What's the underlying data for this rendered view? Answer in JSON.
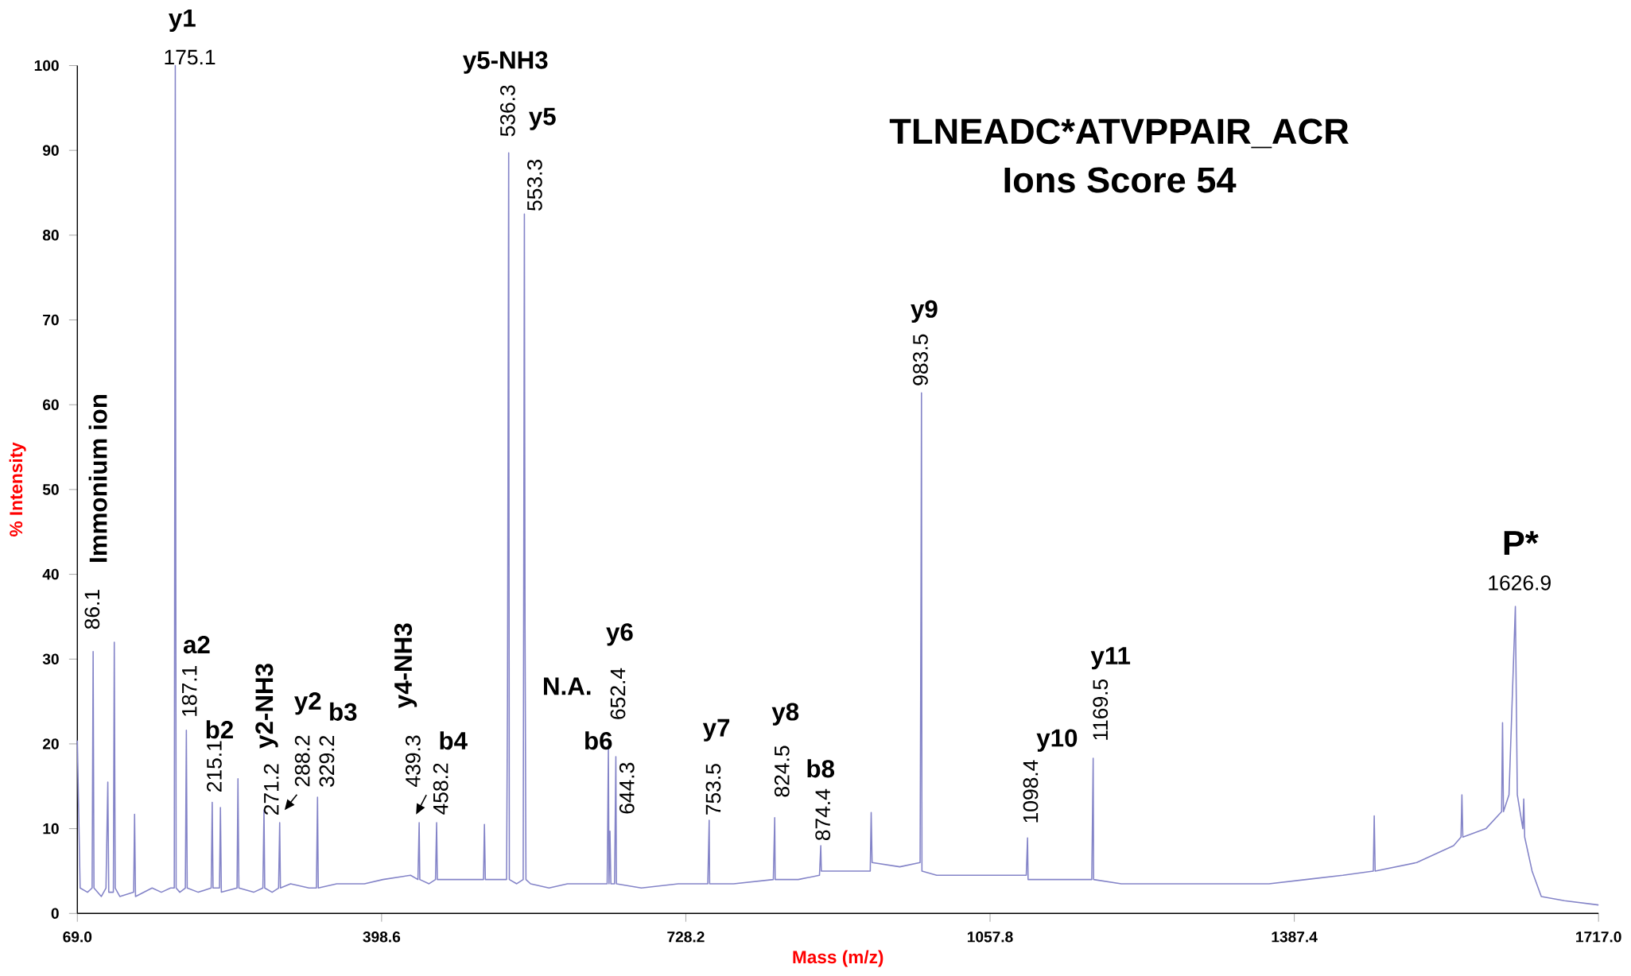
{
  "chart_data": {
    "type": "line",
    "title": "TLNEADC*ATVPPAIR_ACR",
    "subtitle": "Ions Score 54",
    "xlabel": "Mass (m/z)",
    "ylabel": "% Intensity",
    "color": "#8484c8",
    "x": [
      69,
      72,
      80,
      85,
      86.1,
      87,
      95,
      100,
      102,
      103,
      108,
      109,
      110,
      115,
      130,
      131,
      132,
      150,
      160,
      170,
      174,
      175.1,
      176,
      180,
      186,
      187.1,
      188,
      200,
      214,
      215.1,
      216,
      223,
      224,
      225,
      242,
      243,
      244,
      260,
      270,
      271.2,
      272,
      280,
      287,
      288.2,
      289,
      300,
      320,
      328,
      329.2,
      330,
      350,
      380,
      400,
      430,
      438,
      439.3,
      440,
      450,
      457,
      458.2,
      459,
      490,
      509,
      510,
      511,
      525,
      534,
      535,
      536.3,
      537,
      545,
      552,
      553.3,
      554,
      555,
      560,
      580,
      600,
      620,
      643,
      644.3,
      645,
      646,
      647,
      651,
      652.4,
      653,
      680,
      720,
      752,
      753.5,
      754,
      780,
      823,
      824.5,
      825,
      850,
      873,
      874.4,
      875,
      900,
      928,
      929,
      930,
      960,
      982,
      983,
      983.5,
      984,
      1000,
      1040,
      1080,
      1097,
      1098.4,
      1099,
      1130,
      1168,
      1169.5,
      1170,
      1200,
      1260,
      1300,
      1340,
      1360,
      1400,
      1440,
      1473,
      1474,
      1475,
      1520,
      1560,
      1568,
      1569,
      1570,
      1595,
      1612,
      1613,
      1614,
      1620,
      1626.9,
      1629,
      1635,
      1636,
      1637,
      1645,
      1655,
      1680,
      1717
    ],
    "values": [
      20.4,
      3,
      2.5,
      3,
      30.9,
      3,
      2,
      3,
      15.5,
      2.5,
      2.5,
      32,
      3,
      2,
      2.5,
      11.7,
      2,
      3,
      2.5,
      3,
      3,
      100,
      3,
      2.5,
      3,
      21.6,
      3,
      2.5,
      3,
      13.1,
      3,
      3,
      12.5,
      2.5,
      3,
      15.9,
      3,
      2.5,
      3,
      12.2,
      3,
      2.5,
      3,
      10.7,
      3,
      3.5,
      3,
      3,
      13.7,
      3,
      3.5,
      3.5,
      4,
      4.5,
      4,
      10.7,
      4,
      3.5,
      4,
      10.7,
      4,
      4,
      4,
      10.5,
      4,
      4,
      4,
      25,
      89.7,
      4,
      3.5,
      4,
      82.5,
      34,
      4,
      3.5,
      3,
      3.5,
      3.5,
      3.5,
      19.5,
      3.5,
      9.7,
      3.5,
      3.5,
      18.5,
      3.5,
      3,
      3.5,
      3.5,
      11,
      3.5,
      3.5,
      4,
      11.3,
      4,
      4,
      4.5,
      8,
      5,
      5,
      5,
      11.9,
      6,
      5.5,
      6,
      38,
      61.4,
      5,
      4.5,
      4.5,
      4.5,
      4.5,
      8.9,
      4,
      4,
      4,
      18.3,
      4,
      3.5,
      3.5,
      3.5,
      3.5,
      3.5,
      4,
      4.5,
      5,
      11.5,
      5,
      6,
      8,
      9,
      14,
      9,
      10,
      12,
      22.5,
      12,
      14,
      36.2,
      14,
      10,
      13.5,
      9,
      5,
      2,
      1.5,
      1
    ],
    "xlim": [
      69,
      1717
    ],
    "ylim": [
      0,
      100
    ],
    "xticks": [
      {
        "value": 69,
        "label": "69.0"
      },
      {
        "value": 398.6,
        "label": "398.6"
      },
      {
        "value": 728.2,
        "label": "728.2"
      },
      {
        "value": 1057.8,
        "label": "1057.8"
      },
      {
        "value": 1387.4,
        "label": "1387.4"
      },
      {
        "value": 1717,
        "label": "1717.0"
      }
    ],
    "yticks": [
      0,
      10,
      20,
      30,
      40,
      50,
      60,
      70,
      80,
      90,
      100
    ],
    "annotations": [
      "Immonium ion",
      {
        "text": "86.1",
        "x": 86.1,
        "y": 30.9
      },
      "y1",
      {
        "text": "175.1",
        "x": 175.1,
        "y": 100
      },
      "a2",
      {
        "text": "187.1",
        "x": 187.1,
        "y": 21.6
      },
      "b2",
      {
        "text": "215.1",
        "x": 215.1,
        "y": 13.1
      },
      "y2-NH3",
      {
        "text": "271.2",
        "x": 271.2,
        "y": 12.2
      },
      "y2",
      {
        "text": "288.2",
        "x": 288.2,
        "y": 10.7
      },
      "b3",
      {
        "text": "329.2",
        "x": 329.2,
        "y": 13.7
      },
      "y4-NH3",
      {
        "text": "439.3",
        "x": 439.3,
        "y": 10.7
      },
      "b4",
      {
        "text": "458.2",
        "x": 458.2,
        "y": 10.7
      },
      "y5-NH3",
      {
        "text": "536.3",
        "x": 536.3,
        "y": 89.7
      },
      "y5",
      {
        "text": "553.3",
        "x": 553.3,
        "y": 82.5
      },
      "N.A.",
      "b6",
      {
        "text": "644.3",
        "x": 644.3,
        "y": 19.5
      },
      "y6",
      {
        "text": "652.4",
        "x": 652.4,
        "y": 18.5
      },
      "y7",
      {
        "text": "753.5",
        "x": 753.5,
        "y": 11
      },
      "y8",
      {
        "text": "824.5",
        "x": 824.5,
        "y": 11.3
      },
      "b8",
      {
        "text": "874.4",
        "x": 874.4,
        "y": 8
      },
      "y9",
      {
        "text": "983.5",
        "x": 983.5,
        "y": 61.4
      },
      "y10",
      {
        "text": "1098.4",
        "x": 1098.4,
        "y": 8.9
      },
      "y11",
      {
        "text": "1169.5",
        "x": 1169.5,
        "y": 18.3
      },
      "P*",
      {
        "text": "1626.9",
        "x": 1626.9,
        "y": 36.2
      }
    ]
  }
}
